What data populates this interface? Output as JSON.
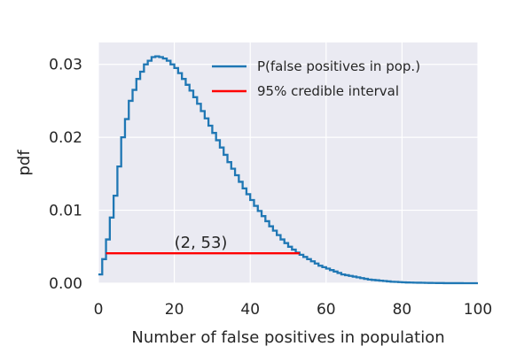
{
  "chart_data": {
    "type": "line",
    "style": "step",
    "title": "",
    "xlabel": "Number of false positives in population",
    "ylabel": "pdf",
    "xlim": [
      0,
      100
    ],
    "ylim": [
      0,
      0.033
    ],
    "xticks": [
      0,
      20,
      40,
      60,
      80,
      100
    ],
    "yticks": [
      0.0,
      0.01,
      0.02,
      0.03
    ],
    "xtick_labels": [
      "0",
      "20",
      "40",
      "60",
      "80",
      "100"
    ],
    "ytick_labels": [
      "0.00",
      "0.01",
      "0.02",
      "0.03"
    ],
    "grid": true,
    "legend_position": "top-right",
    "series": [
      {
        "name": "P(false positives in pop.)",
        "color": "#1f77b4",
        "x": [
          0,
          1,
          2,
          3,
          4,
          5,
          6,
          7,
          8,
          9,
          10,
          11,
          12,
          13,
          14,
          15,
          16,
          17,
          18,
          19,
          20,
          21,
          22,
          23,
          24,
          25,
          26,
          27,
          28,
          29,
          30,
          31,
          32,
          33,
          34,
          35,
          36,
          37,
          38,
          39,
          40,
          41,
          42,
          43,
          44,
          45,
          46,
          47,
          48,
          49,
          50,
          51,
          52,
          53,
          54,
          55,
          56,
          57,
          58,
          59,
          60,
          61,
          62,
          63,
          64,
          65,
          66,
          67,
          68,
          69,
          70,
          71,
          72,
          73,
          74,
          75,
          76,
          77,
          78,
          79,
          80,
          81,
          82,
          83,
          84,
          85,
          86,
          87,
          88,
          89,
          90,
          91,
          92,
          93,
          94,
          95,
          96,
          97,
          98,
          99,
          100
        ],
        "values": [
          0.0012,
          0.0033,
          0.006,
          0.009,
          0.012,
          0.016,
          0.02,
          0.0225,
          0.025,
          0.0265,
          0.028,
          0.029,
          0.03,
          0.0305,
          0.031,
          0.0311,
          0.031,
          0.0308,
          0.0305,
          0.03,
          0.0295,
          0.0288,
          0.028,
          0.0272,
          0.0264,
          0.0255,
          0.0246,
          0.0236,
          0.0226,
          0.0216,
          0.0206,
          0.0196,
          0.0186,
          0.0176,
          0.0166,
          0.0157,
          0.0148,
          0.0139,
          0.013,
          0.0122,
          0.0114,
          0.0106,
          0.0099,
          0.0092,
          0.0085,
          0.0078,
          0.0072,
          0.0066,
          0.006,
          0.0055,
          0.005,
          0.0046,
          0.0042,
          0.0039,
          0.0036,
          0.0033,
          0.003,
          0.0027,
          0.0024,
          0.0022,
          0.002,
          0.0018,
          0.0016,
          0.0014,
          0.0012,
          0.0011,
          0.001,
          0.0009,
          0.0008,
          0.0007,
          0.0006,
          0.0005,
          0.00045,
          0.0004,
          0.00035,
          0.0003,
          0.00025,
          0.0002,
          0.00018,
          0.00015,
          0.00012,
          0.0001,
          9e-05,
          8e-05,
          7e-05,
          6e-05,
          5e-05,
          4e-05,
          3e-05,
          2e-05,
          2e-05,
          1e-05,
          1e-05,
          1e-05,
          5e-06,
          5e-06,
          3e-06,
          2e-06,
          1e-06,
          0.0,
          0.0
        ]
      },
      {
        "name": "95% credible interval",
        "color": "#ff0000",
        "x": [
          2,
          53
        ],
        "values": [
          0.0041,
          0.0041
        ]
      }
    ],
    "annotations": [
      {
        "text": "(2, 53)",
        "x": 20,
        "y": 0.0041
      }
    ]
  }
}
